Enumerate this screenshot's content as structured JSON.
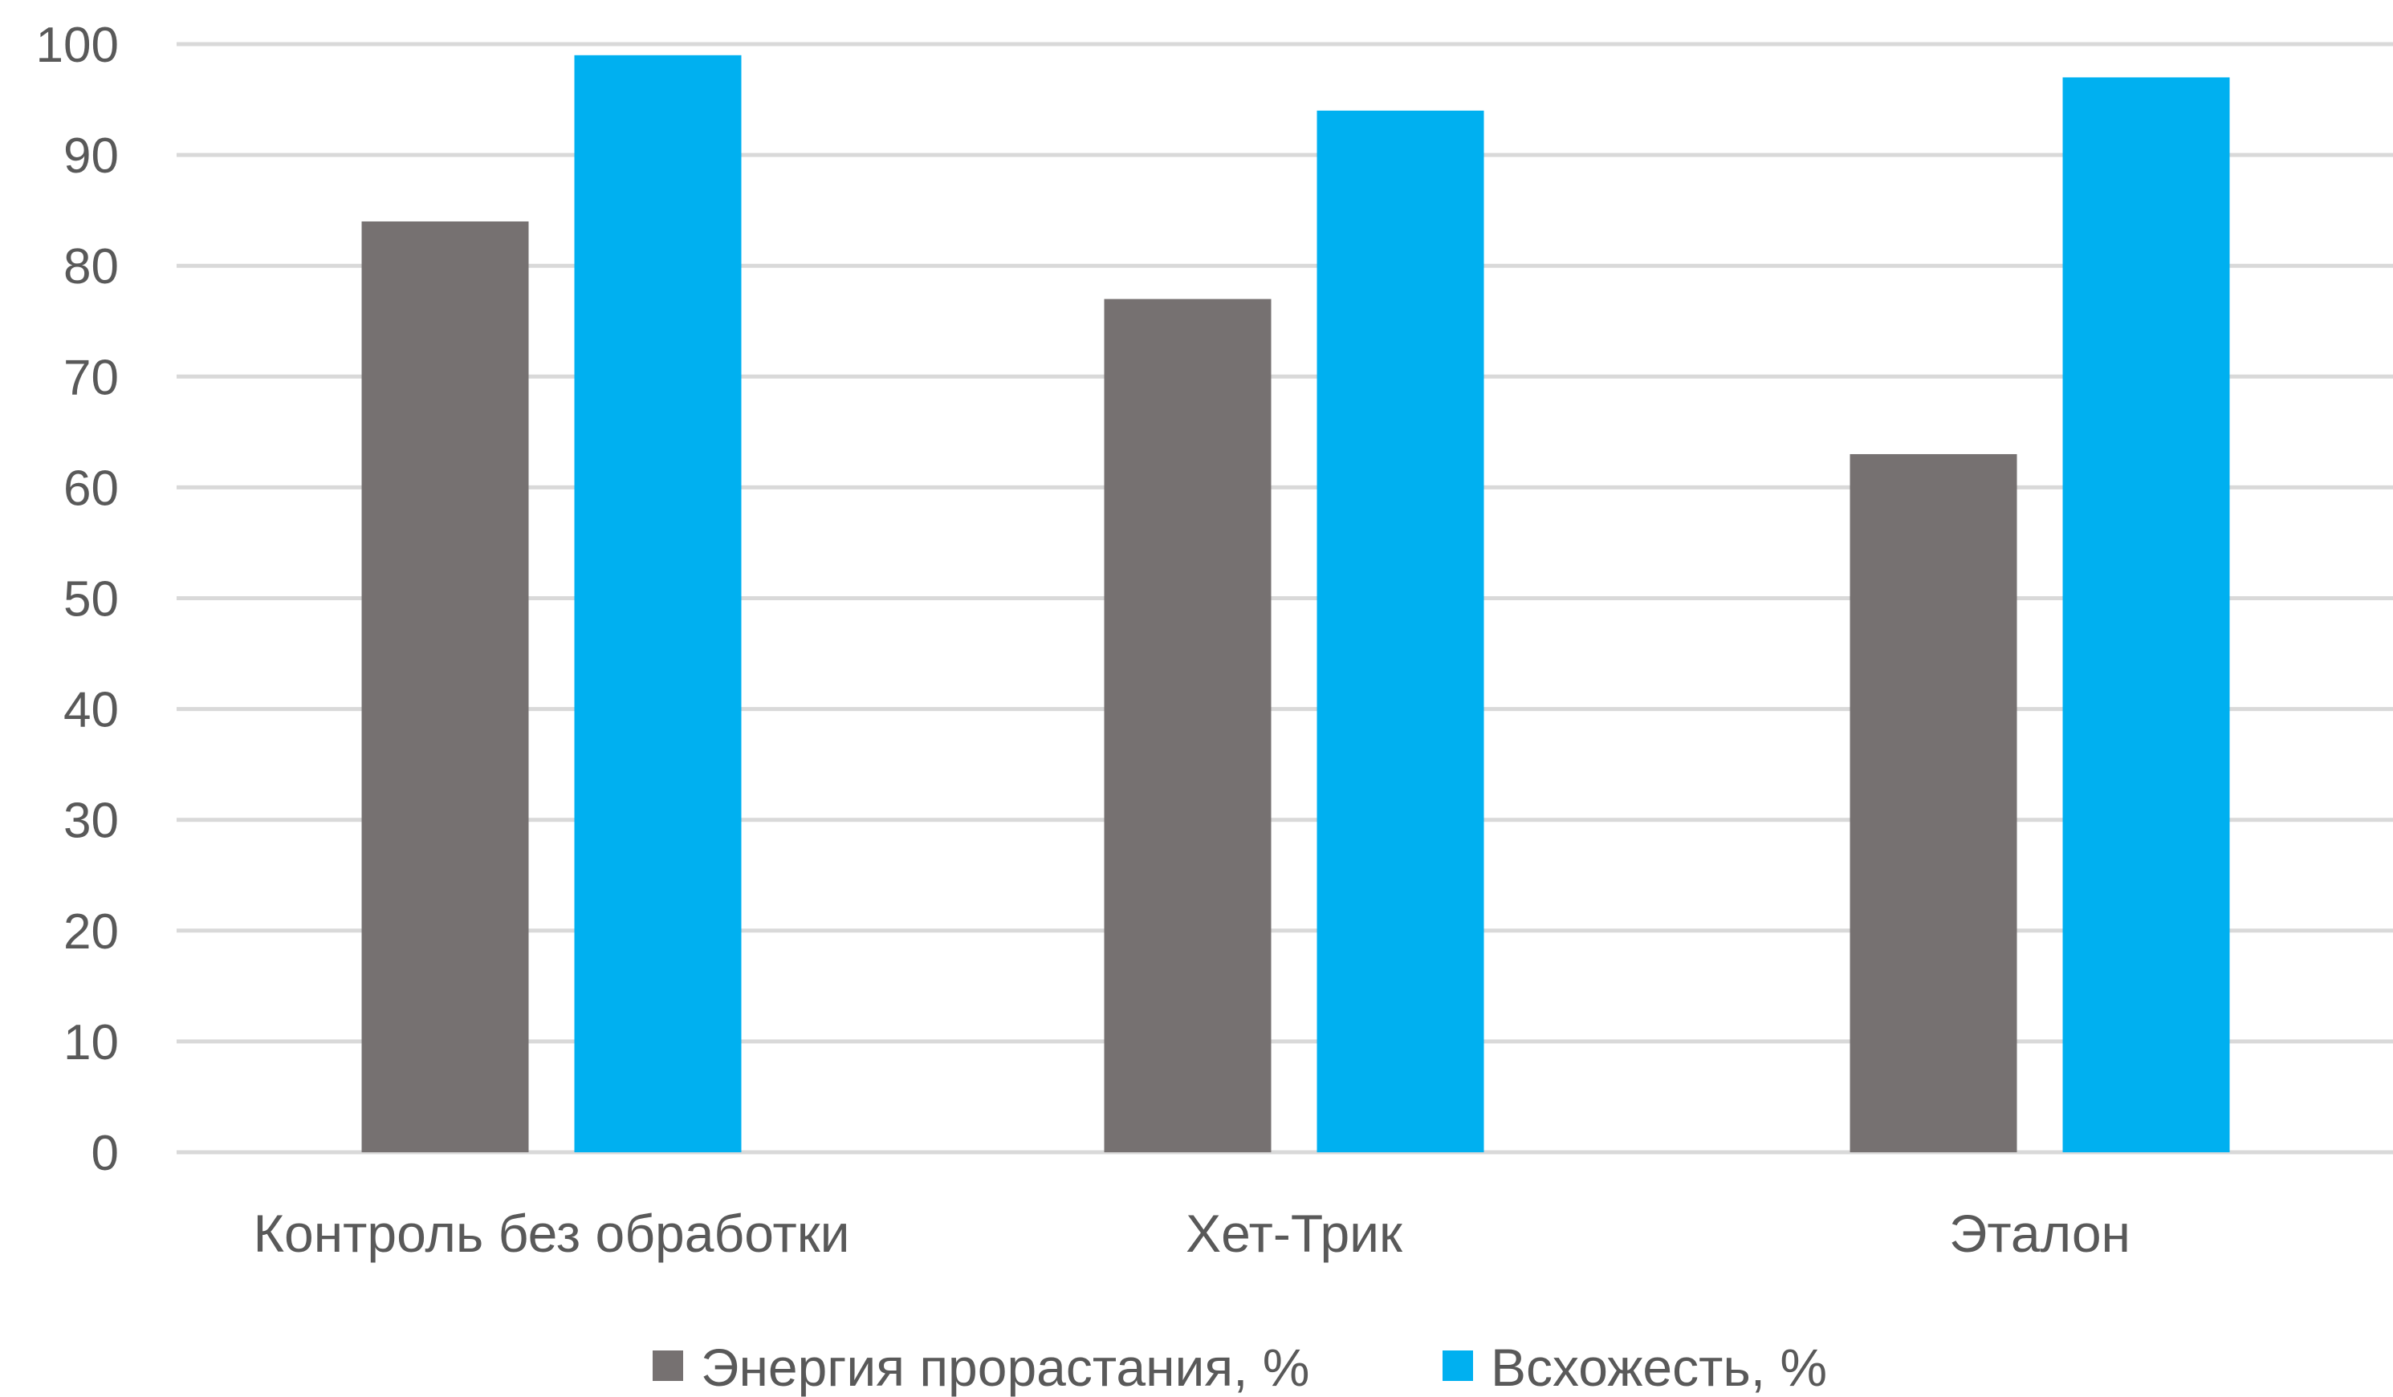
{
  "chart_data": {
    "type": "bar",
    "categories": [
      "Контроль без обработки",
      "Хет-Трик",
      "Эталон"
    ],
    "series": [
      {
        "name": "Энергия прорастания, %",
        "values": [
          84,
          77,
          63
        ],
        "color": "#767171"
      },
      {
        "name": "Всхожесть, %",
        "values": [
          99,
          94,
          97
        ],
        "color": "#00b0f0"
      }
    ],
    "ylim": [
      0,
      100
    ],
    "yticks": [
      "0",
      "10",
      "20",
      "30",
      "40",
      "50",
      "60",
      "70",
      "80",
      "90",
      "100"
    ],
    "grid": true,
    "legend_position": "bottom"
  }
}
